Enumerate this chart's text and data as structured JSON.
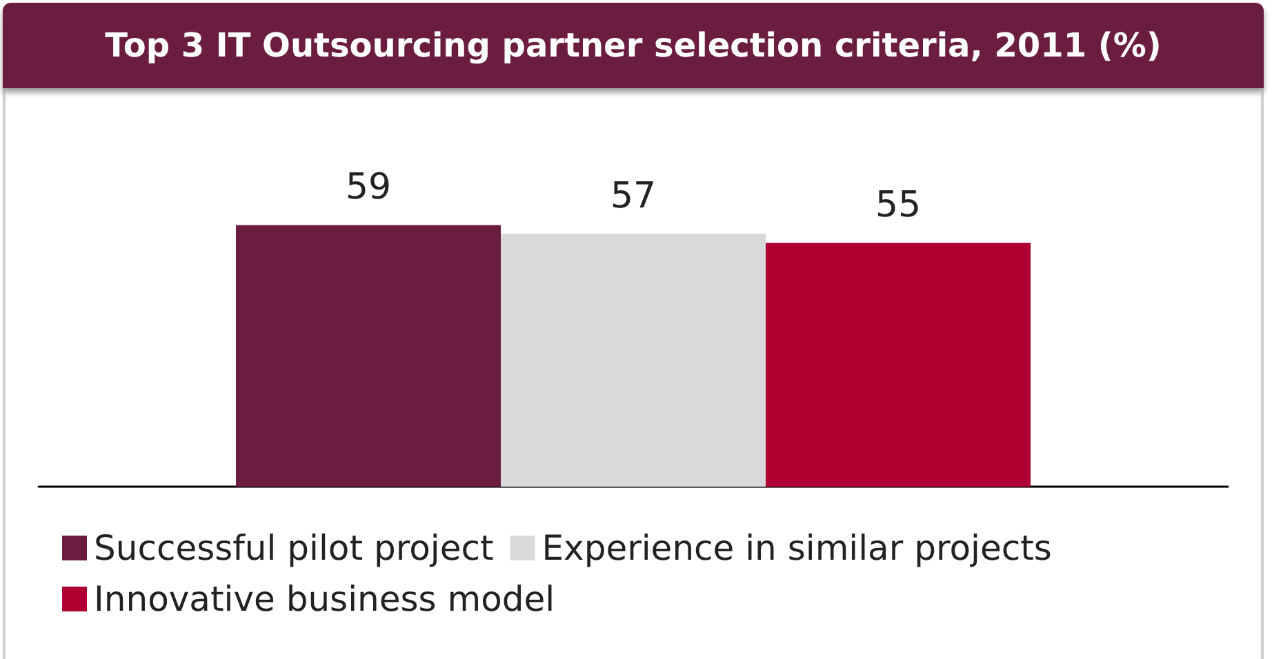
{
  "chart_data": {
    "type": "bar",
    "title": "Top 3 IT Outsourcing partner selection criteria, 2011 (%)",
    "categories": [
      null
    ],
    "series": [
      {
        "name": "Successful pilot project",
        "color": "#6b1d40",
        "values": [
          59
        ]
      },
      {
        "name": "Experience in similar projects",
        "color": "#d9d9d9",
        "values": [
          57
        ]
      },
      {
        "name": "Innovative business model",
        "color": "#b00033",
        "values": [
          55
        ]
      }
    ],
    "data_labels": true,
    "legend": "bottom"
  }
}
